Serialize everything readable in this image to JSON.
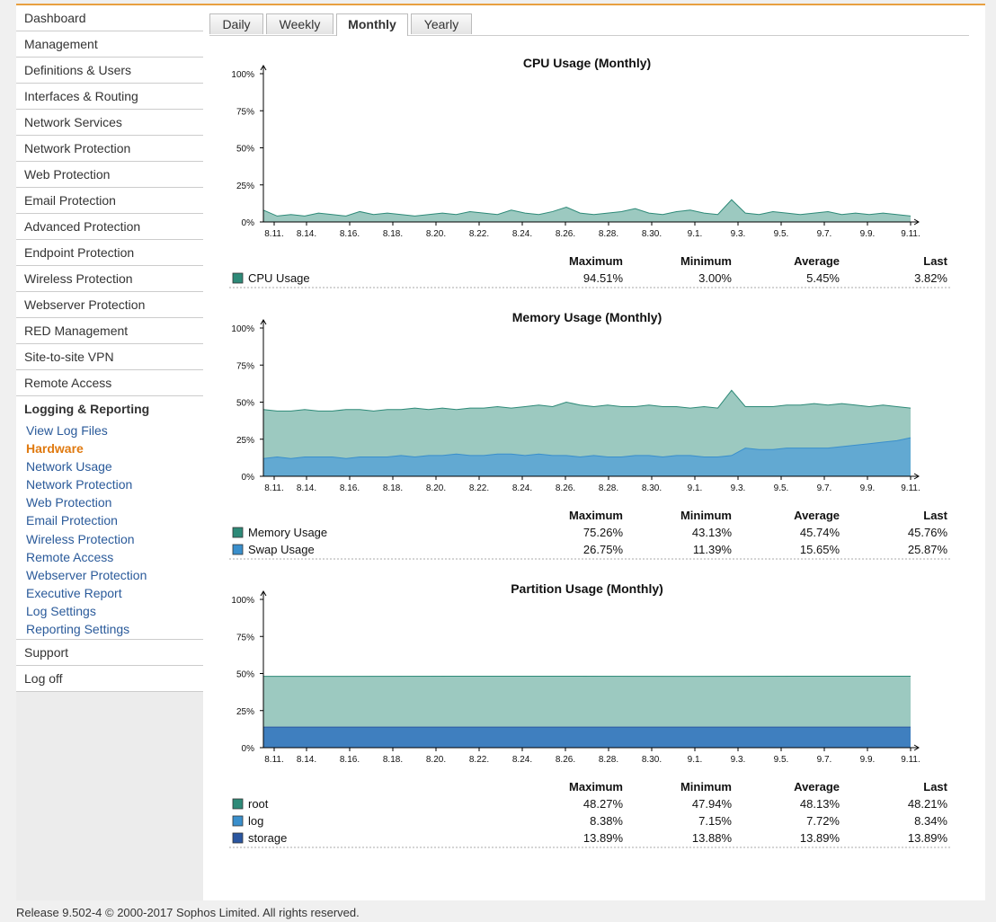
{
  "sidebar": {
    "items": [
      "Dashboard",
      "Management",
      "Definitions & Users",
      "Interfaces & Routing",
      "Network Services",
      "Network Protection",
      "Web Protection",
      "Email Protection",
      "Advanced Protection",
      "Endpoint Protection",
      "Wireless Protection",
      "Webserver Protection",
      "RED Management",
      "Site-to-site VPN",
      "Remote Access"
    ],
    "section": "Logging & Reporting",
    "subitems": [
      "View Log Files",
      "Hardware",
      "Network Usage",
      "Network Protection",
      "Web Protection",
      "Email Protection",
      "Wireless Protection",
      "Remote Access",
      "Webserver Protection",
      "Executive Report",
      "Log Settings",
      "Reporting Settings"
    ],
    "active_subitem": 1,
    "after": [
      "Support",
      "Log off"
    ]
  },
  "tabs": [
    "Daily",
    "Weekly",
    "Monthly",
    "Yearly"
  ],
  "active_tab": 2,
  "footer": "Release 9.502-4  © 2000-2017 Sophos Limited. All rights reserved.",
  "chart_data": [
    {
      "type": "area",
      "title": "CPU Usage (Monthly)",
      "ylim": [
        0,
        100
      ],
      "yticks": [
        {
          "value": 0,
          "label": "0%"
        },
        {
          "value": 25,
          "label": "25%"
        },
        {
          "value": 50,
          "label": "50%"
        },
        {
          "value": 75,
          "label": "75%"
        },
        {
          "value": 100,
          "label": "100%"
        }
      ],
      "xlim": [
        1,
        31
      ],
      "xticks": [
        {
          "value": 1.5,
          "label": "8.11."
        },
        {
          "value": 3,
          "label": "8.14."
        },
        {
          "value": 5,
          "label": "8.16."
        },
        {
          "value": 7,
          "label": "8.18."
        },
        {
          "value": 9,
          "label": "8.20."
        },
        {
          "value": 11,
          "label": "8.22."
        },
        {
          "value": 13,
          "label": "8.24."
        },
        {
          "value": 15,
          "label": "8.26."
        },
        {
          "value": 17,
          "label": "8.28."
        },
        {
          "value": 19,
          "label": "8.30."
        },
        {
          "value": 21,
          "label": "9.1."
        },
        {
          "value": 23,
          "label": "9.3."
        },
        {
          "value": 25,
          "label": "9.5."
        },
        {
          "value": 27,
          "label": "9.7."
        },
        {
          "value": 29,
          "label": "9.9."
        },
        {
          "value": 31,
          "label": "9.11."
        }
      ],
      "stat_headers": [
        "Maximum",
        "Minimum",
        "Average",
        "Last"
      ],
      "series": [
        {
          "name": "CPU Usage",
          "color": "#2e8a78",
          "fill": "#9cc9c0",
          "values": [
            8,
            4,
            5,
            4,
            6,
            5,
            4,
            7,
            5,
            6,
            5,
            4,
            5,
            6,
            5,
            7,
            6,
            5,
            8,
            6,
            5,
            7,
            10,
            6,
            5,
            6,
            7,
            9,
            6,
            5,
            7,
            8,
            6,
            5,
            15,
            6,
            5,
            7,
            6,
            5,
            6,
            7,
            5,
            6,
            5,
            6,
            5,
            4
          ],
          "stats": [
            "94.51%",
            "3.00%",
            "5.45%",
            "3.82%"
          ]
        }
      ]
    },
    {
      "type": "area",
      "title": "Memory Usage (Monthly)",
      "ylim": [
        0,
        100
      ],
      "yticks": [
        {
          "value": 0,
          "label": "0%"
        },
        {
          "value": 25,
          "label": "25%"
        },
        {
          "value": 50,
          "label": "50%"
        },
        {
          "value": 75,
          "label": "75%"
        },
        {
          "value": 100,
          "label": "100%"
        }
      ],
      "xlim": [
        1,
        31
      ],
      "xticks": [
        {
          "value": 1.5,
          "label": "8.11."
        },
        {
          "value": 3,
          "label": "8.14."
        },
        {
          "value": 5,
          "label": "8.16."
        },
        {
          "value": 7,
          "label": "8.18."
        },
        {
          "value": 9,
          "label": "8.20."
        },
        {
          "value": 11,
          "label": "8.22."
        },
        {
          "value": 13,
          "label": "8.24."
        },
        {
          "value": 15,
          "label": "8.26."
        },
        {
          "value": 17,
          "label": "8.28."
        },
        {
          "value": 19,
          "label": "8.30."
        },
        {
          "value": 21,
          "label": "9.1."
        },
        {
          "value": 23,
          "label": "9.3."
        },
        {
          "value": 25,
          "label": "9.5."
        },
        {
          "value": 27,
          "label": "9.7."
        },
        {
          "value": 29,
          "label": "9.9."
        },
        {
          "value": 31,
          "label": "9.11."
        }
      ],
      "stat_headers": [
        "Maximum",
        "Minimum",
        "Average",
        "Last"
      ],
      "series": [
        {
          "name": "Memory Usage",
          "color": "#2e8a78",
          "fill": "#9cc9c0",
          "values": [
            45,
            44,
            44,
            45,
            44,
            44,
            45,
            45,
            44,
            45,
            45,
            46,
            45,
            46,
            45,
            46,
            46,
            47,
            46,
            47,
            48,
            47,
            50,
            48,
            47,
            48,
            47,
            47,
            48,
            47,
            47,
            46,
            47,
            46,
            58,
            47,
            47,
            47,
            48,
            48,
            49,
            48,
            49,
            48,
            47,
            48,
            47,
            46
          ],
          "stats": [
            "75.26%",
            "43.13%",
            "45.74%",
            "45.76%"
          ]
        },
        {
          "name": "Swap Usage",
          "color": "#3a8fcc",
          "fill": "#62a9d2",
          "values": [
            12,
            13,
            12,
            13,
            13,
            13,
            12,
            13,
            13,
            13,
            14,
            13,
            14,
            14,
            15,
            14,
            14,
            15,
            15,
            14,
            15,
            14,
            14,
            13,
            14,
            13,
            13,
            14,
            14,
            13,
            14,
            14,
            13,
            13,
            14,
            19,
            18,
            18,
            19,
            19,
            19,
            19,
            20,
            21,
            22,
            23,
            24,
            26
          ],
          "stats": [
            "26.75%",
            "11.39%",
            "15.65%",
            "25.87%"
          ]
        }
      ]
    },
    {
      "type": "area",
      "title": "Partition Usage (Monthly)",
      "ylim": [
        0,
        100
      ],
      "yticks": [
        {
          "value": 0,
          "label": "0%"
        },
        {
          "value": 25,
          "label": "25%"
        },
        {
          "value": 50,
          "label": "50%"
        },
        {
          "value": 75,
          "label": "75%"
        },
        {
          "value": 100,
          "label": "100%"
        }
      ],
      "xlim": [
        1,
        31
      ],
      "xticks": [
        {
          "value": 1.5,
          "label": "8.11."
        },
        {
          "value": 3,
          "label": "8.14."
        },
        {
          "value": 5,
          "label": "8.16."
        },
        {
          "value": 7,
          "label": "8.18."
        },
        {
          "value": 9,
          "label": "8.20."
        },
        {
          "value": 11,
          "label": "8.22."
        },
        {
          "value": 13,
          "label": "8.24."
        },
        {
          "value": 15,
          "label": "8.26."
        },
        {
          "value": 17,
          "label": "8.28."
        },
        {
          "value": 19,
          "label": "8.30."
        },
        {
          "value": 21,
          "label": "9.1."
        },
        {
          "value": 23,
          "label": "9.3."
        },
        {
          "value": 25,
          "label": "9.5."
        },
        {
          "value": 27,
          "label": "9.7."
        },
        {
          "value": 29,
          "label": "9.9."
        },
        {
          "value": 31,
          "label": "9.11."
        }
      ],
      "stat_headers": [
        "Maximum",
        "Minimum",
        "Average",
        "Last"
      ],
      "series": [
        {
          "name": "root",
          "color": "#2e8a78",
          "fill": "#9cc9c0",
          "values": [
            48.1,
            48.2,
            48.1,
            48.2
          ],
          "stats": [
            "48.27%",
            "47.94%",
            "48.13%",
            "48.21%"
          ]
        },
        {
          "name": "log",
          "color": "#3a8fcc",
          "fill": "#2f6db0",
          "values": [
            7.2,
            7.8,
            8.0,
            8.3
          ],
          "stats": [
            "8.38%",
            "7.15%",
            "7.72%",
            "8.34%"
          ]
        },
        {
          "name": "storage",
          "color": "#2a56a0",
          "fill": "#3f7fbf",
          "values": [
            13.9,
            13.9,
            13.9,
            13.9
          ],
          "stats": [
            "13.89%",
            "13.88%",
            "13.89%",
            "13.89%"
          ]
        }
      ]
    }
  ]
}
